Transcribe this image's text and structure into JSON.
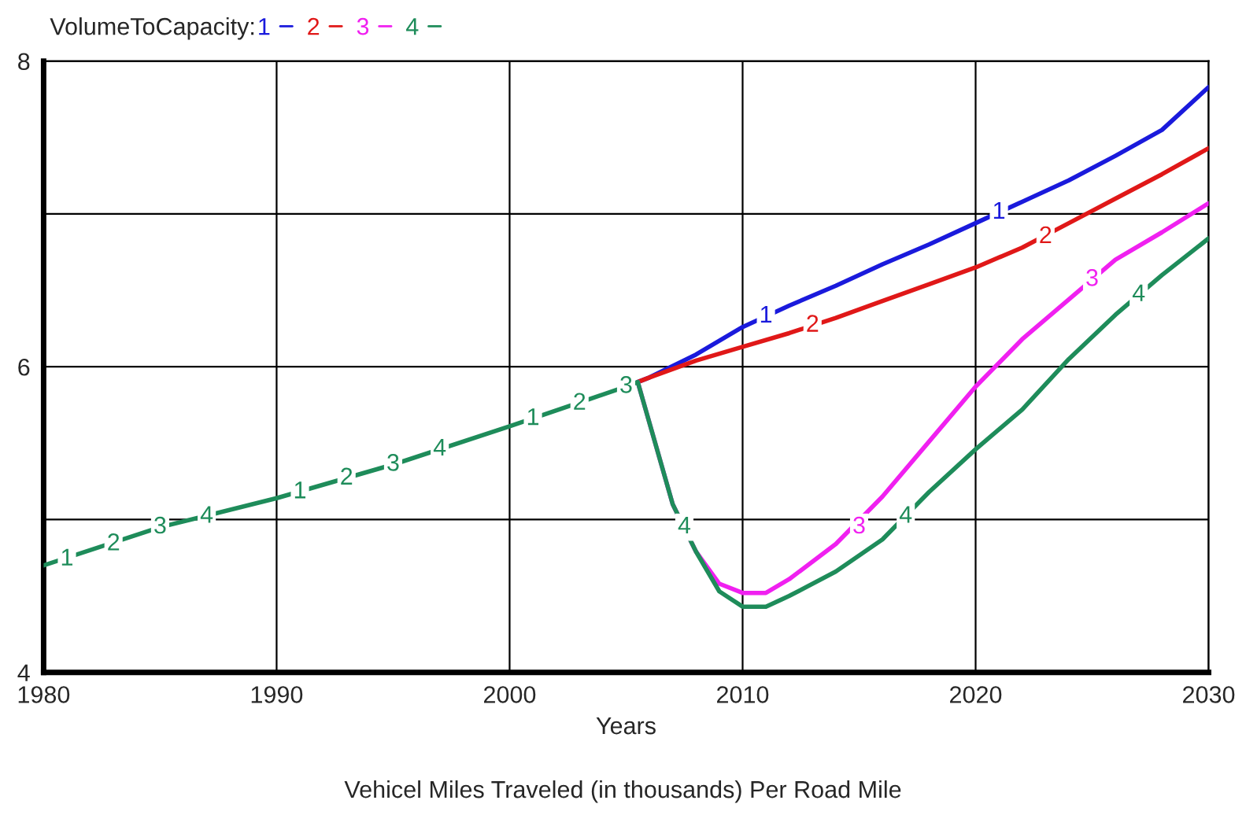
{
  "chart_data": {
    "type": "line",
    "legend_title": "VolumeToCapacity:",
    "xlabel": "Years",
    "xlim": [
      1980,
      2030
    ],
    "xticks": [
      1980,
      1990,
      2000,
      2010,
      2020,
      2030
    ],
    "ylim": [
      4,
      8
    ],
    "yticks": [
      4,
      {
        "value": 5,
        "label": null
      },
      6,
      {
        "value": 7,
        "label": null
      },
      8
    ],
    "grid": true,
    "legend": "top left",
    "line_style": "solid",
    "marker": "none",
    "series": [
      {
        "name": "1",
        "color": "#1a1adc",
        "x": [
          2005.5,
          2006,
          2008,
          2010,
          2012,
          2014,
          2016,
          2018,
          2020,
          2022,
          2024,
          2026,
          2028,
          2030
        ],
        "values": [
          5.9,
          5.93,
          6.08,
          6.26,
          6.4,
          6.53,
          6.67,
          6.8,
          6.94,
          7.08,
          7.22,
          7.38,
          7.55,
          7.83
        ]
      },
      {
        "name": "2",
        "color": "#e01818",
        "x": [
          2005.5,
          2006,
          2008,
          2010,
          2012,
          2014,
          2016,
          2018,
          2020,
          2022,
          2024,
          2026,
          2028,
          2030
        ],
        "values": [
          5.9,
          5.93,
          6.04,
          6.13,
          6.22,
          6.32,
          6.43,
          6.54,
          6.65,
          6.78,
          6.94,
          7.1,
          7.26,
          7.43
        ]
      },
      {
        "name": "3",
        "color": "#f020f0",
        "x": [
          2005.5,
          2007,
          2008,
          2009,
          2010,
          2011,
          2012,
          2014,
          2016,
          2018,
          2020,
          2022,
          2024,
          2026,
          2028,
          2030
        ],
        "values": [
          5.9,
          5.1,
          4.79,
          4.58,
          4.52,
          4.52,
          4.61,
          4.84,
          5.15,
          5.51,
          5.87,
          6.18,
          6.44,
          6.7,
          6.88,
          7.07
        ]
      },
      {
        "name": "4",
        "color": "#1e8c5a",
        "x": [
          1980,
          1985,
          1990,
          1995,
          2000,
          2005,
          2005.5,
          2007,
          2008,
          2009,
          2010,
          2011,
          2012,
          2014,
          2016,
          2018,
          2020,
          2022,
          2024,
          2026,
          2028,
          2030
        ],
        "values": [
          4.7,
          4.95,
          5.14,
          5.36,
          5.61,
          5.87,
          5.9,
          5.1,
          4.79,
          4.53,
          4.43,
          4.43,
          4.5,
          4.66,
          4.87,
          5.18,
          5.46,
          5.72,
          6.05,
          6.34,
          6.6,
          6.84
        ]
      }
    ],
    "annotations": [
      {
        "text": "1",
        "x": 1981,
        "y": 4.74
      },
      {
        "text": "2",
        "x": 1983,
        "y": 4.84
      },
      {
        "text": "3",
        "x": 1985,
        "y": 4.95
      },
      {
        "text": "4",
        "x": 1987,
        "y": 5.02
      },
      {
        "text": "1",
        "x": 1991,
        "y": 5.18
      },
      {
        "text": "2",
        "x": 1993,
        "y": 5.27
      },
      {
        "text": "3",
        "x": 1995,
        "y": 5.36
      },
      {
        "text": "4",
        "x": 1997,
        "y": 5.46
      },
      {
        "text": "1",
        "x": 2001,
        "y": 5.66
      },
      {
        "text": "2",
        "x": 2003,
        "y": 5.76
      },
      {
        "text": "3",
        "x": 2005,
        "y": 5.87
      },
      {
        "text": "4",
        "x": 2007.5,
        "y": 4.95
      },
      {
        "text": "1",
        "x": 2011,
        "y": 6.33
      },
      {
        "text": "2",
        "x": 2013,
        "y": 6.27
      },
      {
        "text": "3",
        "x": 2015,
        "y": 4.95
      },
      {
        "text": "4",
        "x": 2017,
        "y": 5.02
      },
      {
        "text": "1",
        "x": 2021,
        "y": 7.01
      },
      {
        "text": "2",
        "x": 2023,
        "y": 6.85
      },
      {
        "text": "3",
        "x": 2025,
        "y": 6.57
      },
      {
        "text": "4",
        "x": 2027,
        "y": 6.47
      },
      "Vehicel Miles Traveled (in thousands) Per Road Mile"
    ]
  }
}
